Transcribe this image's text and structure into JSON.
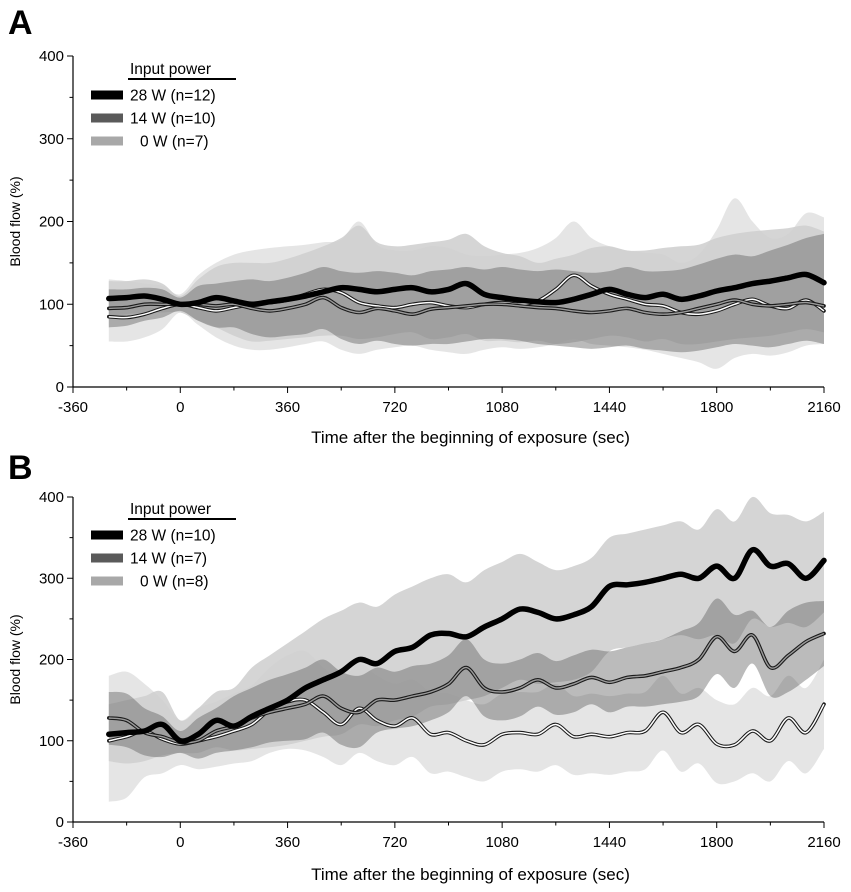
{
  "chart_data": [
    {
      "type": "line",
      "panel": "A",
      "xlabel": "Time after the beginning of exposure (sec)",
      "ylabel": "Blood flow (%)",
      "xlim": [
        -360,
        2160
      ],
      "ylim": [
        0,
        400
      ],
      "xticks": [
        -360,
        0,
        360,
        720,
        1080,
        1440,
        1800,
        2160
      ],
      "yticks": [
        0,
        100,
        200,
        300,
        400
      ],
      "legend_title": "Input power",
      "legend_position": "top-left",
      "series": [
        {
          "name": "28 W (n=12)",
          "style": "thick-black",
          "x": [
            -240,
            -180,
            -120,
            -60,
            0,
            60,
            120,
            180,
            240,
            300,
            360,
            420,
            480,
            540,
            600,
            660,
            720,
            780,
            840,
            900,
            960,
            1020,
            1080,
            1140,
            1200,
            1260,
            1320,
            1380,
            1440,
            1500,
            1560,
            1620,
            1680,
            1740,
            1800,
            1860,
            1920,
            1980,
            2040,
            2100,
            2160
          ],
          "values": [
            107,
            108,
            110,
            106,
            100,
            102,
            108,
            104,
            100,
            103,
            106,
            110,
            115,
            120,
            118,
            115,
            118,
            120,
            115,
            118,
            125,
            112,
            108,
            105,
            103,
            102,
            106,
            112,
            118,
            112,
            108,
            112,
            106,
            110,
            116,
            120,
            125,
            128,
            132,
            136,
            126
          ],
          "upper": [
            128,
            128,
            130,
            125,
            110,
            130,
            145,
            150,
            150,
            150,
            155,
            162,
            170,
            180,
            195,
            175,
            170,
            172,
            175,
            178,
            185,
            170,
            162,
            158,
            150,
            155,
            160,
            168,
            170,
            165,
            165,
            168,
            170,
            172,
            180,
            185,
            188,
            190,
            192,
            195,
            188
          ],
          "lower": [
            86,
            88,
            90,
            90,
            90,
            80,
            72,
            62,
            55,
            56,
            58,
            60,
            62,
            62,
            58,
            60,
            64,
            66,
            58,
            60,
            64,
            56,
            56,
            54,
            56,
            52,
            54,
            58,
            62,
            60,
            55,
            58,
            52,
            52,
            55,
            58,
            60,
            62,
            66,
            70,
            66
          ]
        },
        {
          "name": "14 W (n=10)",
          "style": "dark-gray-outline",
          "x": [
            -240,
            -180,
            -120,
            -60,
            0,
            60,
            120,
            180,
            240,
            300,
            360,
            420,
            480,
            540,
            600,
            660,
            720,
            780,
            840,
            900,
            960,
            1020,
            1080,
            1140,
            1200,
            1260,
            1320,
            1380,
            1440,
            1500,
            1560,
            1620,
            1680,
            1740,
            1800,
            1860,
            1920,
            1980,
            2040,
            2100,
            2160
          ],
          "values": [
            95,
            96,
            100,
            100,
            100,
            100,
            98,
            100,
            95,
            92,
            95,
            100,
            108,
            96,
            90,
            95,
            92,
            88,
            94,
            96,
            98,
            100,
            100,
            98,
            96,
            95,
            92,
            90,
            92,
            95,
            90,
            88,
            90,
            95,
            100,
            105,
            100,
            98,
            100,
            102,
            98
          ],
          "upper": [
            118,
            118,
            120,
            118,
            108,
            122,
            125,
            128,
            130,
            128,
            132,
            138,
            145,
            140,
            138,
            140,
            138,
            135,
            140,
            142,
            145,
            142,
            145,
            142,
            140,
            142,
            140,
            138,
            140,
            145,
            140,
            140,
            142,
            148,
            155,
            160,
            158,
            165,
            172,
            180,
            185
          ],
          "lower": [
            72,
            74,
            80,
            84,
            92,
            80,
            72,
            72,
            64,
            60,
            62,
            64,
            70,
            58,
            52,
            56,
            52,
            50,
            52,
            52,
            55,
            58,
            58,
            56,
            52,
            50,
            48,
            46,
            48,
            50,
            46,
            44,
            42,
            44,
            48,
            52,
            50,
            48,
            52,
            56,
            52
          ]
        },
        {
          "name": "0 W (n=7)",
          "style": "light-gray-outline",
          "x": [
            -240,
            -180,
            -120,
            -60,
            0,
            60,
            120,
            180,
            240,
            300,
            360,
            420,
            480,
            540,
            600,
            660,
            720,
            780,
            840,
            900,
            960,
            1020,
            1080,
            1140,
            1200,
            1260,
            1320,
            1380,
            1440,
            1500,
            1560,
            1620,
            1680,
            1740,
            1800,
            1860,
            1920,
            1980,
            2040,
            2100,
            2160
          ],
          "values": [
            85,
            84,
            88,
            95,
            100,
            96,
            92,
            96,
            100,
            102,
            105,
            112,
            118,
            114,
            102,
            98,
            96,
            100,
            102,
            98,
            96,
            100,
            102,
            100,
            104,
            118,
            135,
            122,
            112,
            106,
            100,
            98,
            90,
            88,
            92,
            100,
            106,
            98,
            95,
            105,
            92
          ],
          "upper": [
            130,
            128,
            125,
            122,
            112,
            135,
            150,
            160,
            165,
            168,
            170,
            172,
            175,
            178,
            200,
            172,
            165,
            165,
            170,
            168,
            160,
            158,
            160,
            162,
            168,
            180,
            200,
            180,
            170,
            165,
            162,
            160,
            150,
            160,
            190,
            228,
            200,
            180,
            185,
            210,
            205
          ],
          "lower": [
            55,
            55,
            60,
            70,
            90,
            75,
            60,
            50,
            45,
            45,
            48,
            52,
            55,
            45,
            40,
            45,
            48,
            50,
            45,
            42,
            40,
            45,
            48,
            46,
            48,
            52,
            58,
            52,
            50,
            48,
            45,
            40,
            35,
            30,
            22,
            35,
            40,
            38,
            42,
            50,
            52
          ]
        }
      ]
    },
    {
      "type": "line",
      "panel": "B",
      "xlabel": "Time after the beginning of exposure (sec)",
      "ylabel": "Blood flow (%)",
      "xlim": [
        -360,
        2160
      ],
      "ylim": [
        0,
        400
      ],
      "xticks": [
        -360,
        0,
        360,
        720,
        1080,
        1440,
        1800,
        2160
      ],
      "yticks": [
        0,
        100,
        200,
        300,
        400
      ],
      "legend_title": "Input power",
      "legend_position": "top-left",
      "series": [
        {
          "name": "28 W (n=10)",
          "style": "thick-black",
          "x": [
            -240,
            -180,
            -120,
            -60,
            0,
            60,
            120,
            180,
            240,
            300,
            360,
            420,
            480,
            540,
            600,
            660,
            720,
            780,
            840,
            900,
            960,
            1020,
            1080,
            1140,
            1200,
            1260,
            1320,
            1380,
            1440,
            1500,
            1560,
            1620,
            1680,
            1740,
            1800,
            1860,
            1920,
            1980,
            2040,
            2100,
            2160
          ],
          "values": [
            108,
            110,
            112,
            120,
            100,
            108,
            125,
            118,
            130,
            140,
            150,
            165,
            175,
            185,
            200,
            195,
            210,
            215,
            230,
            232,
            228,
            240,
            250,
            262,
            258,
            250,
            255,
            265,
            290,
            292,
            295,
            300,
            305,
            300,
            315,
            300,
            335,
            315,
            318,
            300,
            322
          ],
          "upper": [
            145,
            150,
            155,
            160,
            125,
            140,
            160,
            165,
            190,
            205,
            220,
            235,
            250,
            260,
            270,
            265,
            280,
            290,
            300,
            305,
            295,
            310,
            320,
            330,
            320,
            310,
            315,
            325,
            350,
            355,
            360,
            365,
            370,
            360,
            385,
            370,
            400,
            380,
            378,
            370,
            382
          ],
          "lower": [
            75,
            72,
            75,
            82,
            85,
            85,
            92,
            88,
            90,
            92,
            95,
            100,
            105,
            108,
            120,
            118,
            125,
            130,
            142,
            145,
            150,
            155,
            165,
            175,
            170,
            172,
            175,
            185,
            210,
            215,
            220,
            225,
            230,
            225,
            230,
            220,
            250,
            240,
            245,
            240,
            258
          ]
        },
        {
          "name": "14 W (n=7)",
          "style": "dark-gray-outline",
          "x": [
            -240,
            -180,
            -120,
            -60,
            0,
            60,
            120,
            180,
            240,
            300,
            360,
            420,
            480,
            540,
            600,
            660,
            720,
            780,
            840,
            900,
            960,
            1020,
            1080,
            1140,
            1200,
            1260,
            1320,
            1380,
            1440,
            1500,
            1560,
            1620,
            1680,
            1740,
            1800,
            1860,
            1920,
            1980,
            2040,
            2100,
            2160
          ],
          "values": [
            128,
            125,
            110,
            105,
            98,
            100,
            112,
            118,
            128,
            135,
            140,
            145,
            155,
            140,
            135,
            150,
            150,
            155,
            160,
            170,
            190,
            165,
            160,
            165,
            175,
            165,
            170,
            178,
            172,
            178,
            180,
            185,
            190,
            200,
            228,
            210,
            230,
            190,
            205,
            222,
            232
          ],
          "upper": [
            160,
            158,
            140,
            130,
            112,
            128,
            140,
            155,
            165,
            175,
            182,
            190,
            200,
            185,
            180,
            190,
            185,
            192,
            195,
            205,
            225,
            200,
            195,
            200,
            208,
            198,
            205,
            212,
            210,
            215,
            220,
            225,
            235,
            245,
            275,
            255,
            260,
            240,
            260,
            270,
            272
          ],
          "lower": [
            95,
            92,
            82,
            80,
            85,
            78,
            85,
            88,
            92,
            98,
            100,
            102,
            110,
            95,
            92,
            110,
            115,
            118,
            125,
            135,
            155,
            130,
            125,
            130,
            142,
            132,
            135,
            145,
            135,
            142,
            142,
            145,
            148,
            155,
            182,
            165,
            195,
            155,
            160,
            175,
            192
          ]
        },
        {
          "name": "0 W (n=8)",
          "style": "light-gray-outline",
          "x": [
            -240,
            -180,
            -120,
            -60,
            0,
            60,
            120,
            180,
            240,
            300,
            360,
            420,
            480,
            540,
            600,
            660,
            720,
            780,
            840,
            900,
            960,
            1020,
            1080,
            1140,
            1200,
            1260,
            1320,
            1380,
            1440,
            1500,
            1560,
            1620,
            1680,
            1740,
            1800,
            1860,
            1920,
            1980,
            2040,
            2100,
            2160
          ],
          "values": [
            100,
            105,
            112,
            102,
            96,
            100,
            105,
            112,
            120,
            138,
            148,
            150,
            135,
            120,
            140,
            125,
            118,
            128,
            108,
            110,
            100,
            95,
            108,
            110,
            108,
            120,
            105,
            108,
            105,
            110,
            112,
            135,
            110,
            120,
            96,
            95,
            112,
            100,
            128,
            110,
            145
          ],
          "upper": [
            180,
            185,
            170,
            150,
            125,
            140,
            148,
            158,
            168,
            190,
            205,
            210,
            190,
            175,
            195,
            180,
            170,
            175,
            160,
            158,
            150,
            145,
            158,
            160,
            160,
            170,
            155,
            158,
            155,
            158,
            160,
            180,
            158,
            165,
            150,
            145,
            165,
            155,
            180,
            165,
            200
          ],
          "lower": [
            25,
            30,
            55,
            60,
            70,
            65,
            68,
            72,
            75,
            85,
            90,
            88,
            80,
            70,
            85,
            75,
            70,
            80,
            60,
            62,
            55,
            50,
            62,
            65,
            62,
            70,
            58,
            60,
            58,
            62,
            65,
            88,
            62,
            72,
            48,
            50,
            60,
            50,
            75,
            60,
            90
          ]
        }
      ]
    }
  ]
}
